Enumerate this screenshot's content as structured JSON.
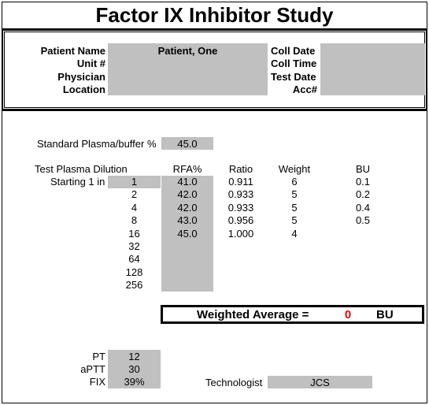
{
  "title": "Factor IX Inhibitor Study",
  "patient": {
    "name_label": "Patient Name",
    "name_value": "Patient, One",
    "unit_label": "Unit #",
    "physician_label": "Physician",
    "location_label": "Location",
    "coll_date_label": "Coll Date",
    "coll_time_label": "Coll Time",
    "test_date_label": "Test Date",
    "acc_label": "Acc#"
  },
  "standard": {
    "label": "Standard Plasma/buffer %",
    "value": "45.0"
  },
  "table": {
    "headers": {
      "dilution": "Test Plasma Dilution",
      "rfa": "RFA%",
      "ratio": "Ratio",
      "weight": "Weight",
      "bu": "BU"
    },
    "starting_label": "Starting 1 in",
    "rows": [
      {
        "dilution": "1",
        "rfa": "41.0",
        "ratio": "0.911",
        "weight": "6",
        "bu": "0.1"
      },
      {
        "dilution": "2",
        "rfa": "42.0",
        "ratio": "0.933",
        "weight": "5",
        "bu": "0.2"
      },
      {
        "dilution": "4",
        "rfa": "42.0",
        "ratio": "0.933",
        "weight": "5",
        "bu": "0.4"
      },
      {
        "dilution": "8",
        "rfa": "43.0",
        "ratio": "0.956",
        "weight": "5",
        "bu": "0.5"
      },
      {
        "dilution": "16",
        "rfa": "45.0",
        "ratio": "1.000",
        "weight": "4",
        "bu": ""
      },
      {
        "dilution": "32",
        "rfa": "",
        "ratio": "",
        "weight": "",
        "bu": ""
      },
      {
        "dilution": "64",
        "rfa": "",
        "ratio": "",
        "weight": "",
        "bu": ""
      },
      {
        "dilution": "128",
        "rfa": "",
        "ratio": "",
        "weight": "",
        "bu": ""
      },
      {
        "dilution": "256",
        "rfa": "",
        "ratio": "",
        "weight": "",
        "bu": ""
      }
    ]
  },
  "weighted_average": {
    "label": "Weighted Average =",
    "value": "0",
    "unit": "BU",
    "value_color": "#ff0000"
  },
  "coag": {
    "pt_label": "PT",
    "pt_value": "12",
    "aptt_label": "aPTT",
    "aptt_value": "30",
    "fix_label": "FIX",
    "fix_value": "39%"
  },
  "technologist": {
    "label": "Technologist",
    "value": "JCS"
  }
}
